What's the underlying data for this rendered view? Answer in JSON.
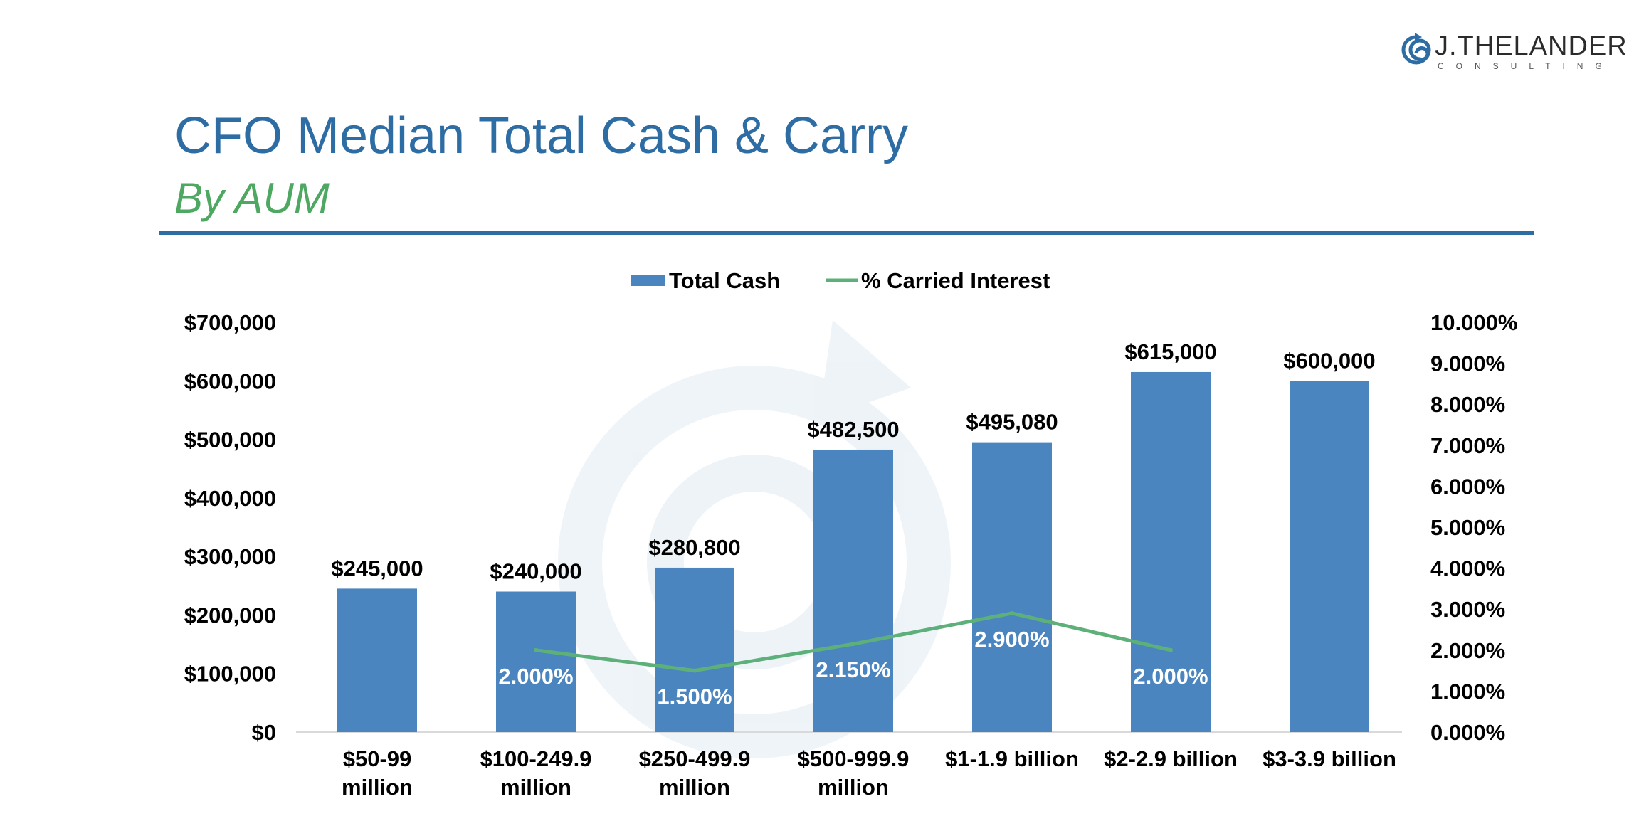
{
  "header": {
    "title": "CFO Median Total Cash & Carry",
    "subtitle": "By AUM"
  },
  "brand": {
    "name": "J.THELANDER",
    "sub": "CONSULTING"
  },
  "colors": {
    "bar": "#4a85c0",
    "line": "#5db07a",
    "title": "#2e6da4",
    "subtitle": "#4ea862"
  },
  "chart_data": {
    "type": "bar",
    "legend": [
      "Total Cash",
      "% Carried Interest"
    ],
    "legend_position": "top",
    "categories": [
      [
        "$50-99",
        "million"
      ],
      [
        "$100-249.9",
        "million"
      ],
      [
        "$250-499.9",
        "million"
      ],
      [
        "$500-999.9",
        "million"
      ],
      [
        "$1-1.9 billion"
      ],
      [
        "$2-2.9 billion"
      ],
      [
        "$3-3.9 billion"
      ]
    ],
    "series": [
      {
        "name": "Total Cash",
        "type": "bar",
        "axis": "left",
        "values": [
          245000,
          240000,
          280800,
          482500,
          495080,
          615000,
          600000
        ],
        "labels": [
          "$245,000",
          "$240,000",
          "$280,800",
          "$482,500",
          "$495,080",
          "$615,000",
          "$600,000"
        ]
      },
      {
        "name": "% Carried Interest",
        "type": "line",
        "axis": "right",
        "values": [
          null,
          2.0,
          1.5,
          2.15,
          2.9,
          2.0,
          null
        ],
        "labels": [
          null,
          "2.000%",
          "1.500%",
          "2.150%",
          "2.900%",
          "2.000%",
          null
        ]
      }
    ],
    "y_left": {
      "min": 0,
      "max": 700000,
      "ticks": [
        "$0",
        "$100,000",
        "$200,000",
        "$300,000",
        "$400,000",
        "$500,000",
        "$600,000",
        "$700,000"
      ]
    },
    "y_right": {
      "min": 0,
      "max": 10,
      "ticks": [
        "0.000%",
        "1.000%",
        "2.000%",
        "3.000%",
        "4.000%",
        "5.000%",
        "6.000%",
        "7.000%",
        "8.000%",
        "9.000%",
        "10.000%"
      ]
    },
    "grid": false
  }
}
